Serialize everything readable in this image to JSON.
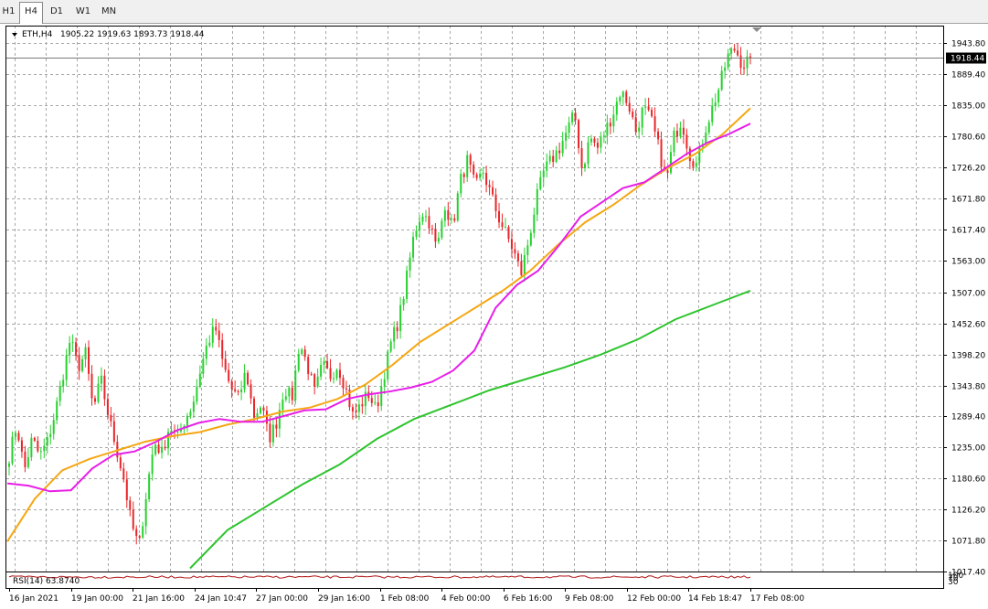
{
  "timeframe_tabs": [
    {
      "label": "H1",
      "active": false
    },
    {
      "label": "H4",
      "active": true
    },
    {
      "label": "D1",
      "active": false
    },
    {
      "label": "W1",
      "active": false
    },
    {
      "label": "MN",
      "active": false
    }
  ],
  "colors": {
    "bull": "#26d12e",
    "bear": "#e8262a",
    "ma_fast": "#e81ee8",
    "ma_mid": "#f5a712",
    "ma_slow": "#2ec42e",
    "rsi": "#b01616",
    "grid": "#a8a8a8"
  },
  "chart_data": {
    "type": "candlestick",
    "symbol_header": "ETH,H4",
    "ohlc_header": "1905.22 1919.63 1893.73 1918.44",
    "current_price_label": "1918.44",
    "current_price": 1918.44,
    "ylim": [
      1017.4,
      1975
    ],
    "y_ticks": [
      1943.8,
      1889.4,
      1835.0,
      1780.6,
      1726.2,
      1671.8,
      1617.4,
      1563.0,
      1507.0,
      1452.6,
      1398.2,
      1343.8,
      1289.4,
      1235.0,
      1180.6,
      1126.2,
      1071.8,
      1017.4
    ],
    "y_tick_labels": [
      "1943.80",
      "1889.40",
      "1835.00",
      "1780.60",
      "1726.20",
      "1671.80",
      "1617.40",
      "1563.00",
      "1507.00",
      "1452.60",
      "1398.20",
      "1343.80",
      "1289.40",
      "1235.00",
      "1180.60",
      "1126.20",
      "1071.80",
      "1017.40"
    ],
    "x_tick_labels": [
      "16 Jan 2021",
      "19 Jan 00:00",
      "21 Jan 16:00",
      "24 Jan 10:47",
      "27 Jan 00:00",
      "29 Jan 16:00",
      "1 Feb 08:00",
      "4 Feb 00:00",
      "6 Feb 16:00",
      "9 Feb 08:00",
      "12 Feb 00:00",
      "14 Feb 18:47",
      "17 Feb 08:00"
    ],
    "close_path": [
      1220,
      1275,
      1195,
      1250,
      1220,
      1245,
      1295,
      1360,
      1425,
      1375,
      1400,
      1300,
      1355,
      1290,
      1235,
      1180,
      1100,
      1060,
      1160,
      1245,
      1225,
      1275,
      1250,
      1285,
      1310,
      1370,
      1420,
      1445,
      1380,
      1340,
      1320,
      1370,
      1290,
      1310,
      1250,
      1280,
      1340,
      1320,
      1420,
      1380,
      1330,
      1380,
      1360,
      1380,
      1340,
      1290,
      1310,
      1330,
      1300,
      1360,
      1420,
      1460,
      1530,
      1610,
      1650,
      1630,
      1580,
      1665,
      1620,
      1700,
      1740,
      1690,
      1720,
      1680,
      1640,
      1610,
      1580,
      1540,
      1600,
      1670,
      1720,
      1740,
      1760,
      1790,
      1820,
      1720,
      1780,
      1760,
      1790,
      1820,
      1860,
      1840,
      1790,
      1830,
      1810,
      1760,
      1700,
      1780,
      1810,
      1750,
      1730,
      1790,
      1830,
      1870,
      1920,
      1935,
      1905,
      1918.44
    ],
    "ma_fast_path": [
      1172,
      1168,
      1158,
      1160,
      1198,
      1222,
      1228,
      1245,
      1265,
      1278,
      1285,
      1280,
      1280,
      1290,
      1300,
      1302,
      1320,
      1328,
      1333,
      1340,
      1350,
      1370,
      1405,
      1480,
      1520,
      1545,
      1590,
      1640,
      1665,
      1690,
      1700,
      1725,
      1750,
      1770,
      1785,
      1803
    ],
    "ma_mid_path": [
      1070,
      1145,
      1195,
      1215,
      1230,
      1245,
      1255,
      1262,
      1275,
      1285,
      1298,
      1305,
      1320,
      1345,
      1380,
      1420,
      1450,
      1480,
      1510,
      1545,
      1590,
      1630,
      1660,
      1695,
      1725,
      1750,
      1785,
      1830
    ],
    "ma_slow_path": [
      1023,
      1090,
      1130,
      1170,
      1205,
      1250,
      1285,
      1310,
      1335,
      1355,
      1375,
      1398,
      1425,
      1460,
      1485,
      1510
    ],
    "rsi_label": "RSI(14) 63.8740",
    "rsi_value": 63.874,
    "rsi_scale_labels": [
      "100",
      "70",
      "30"
    ]
  }
}
